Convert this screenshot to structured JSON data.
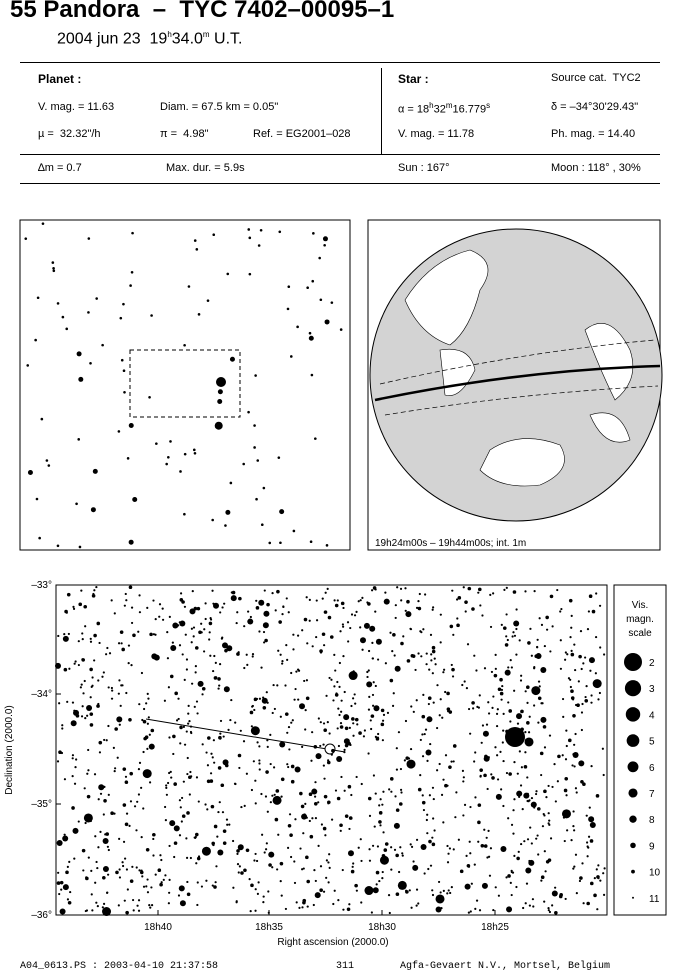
{
  "header": {
    "title": "55 Pandora  –  TYC 7402–00095–1",
    "date": "2004 jun 23",
    "time": [
      "19",
      "h",
      "34.0",
      "m",
      "U.T."
    ]
  },
  "planet": {
    "label": "Planet :",
    "vmag": "V. mag. = 11.63",
    "diam": "Diam. = 67.5 km = 0.05\"",
    "mu": "µ =  32.32\"/h",
    "pi": "π =  4.98\"",
    "ref": "Ref. = EG2001–028"
  },
  "star": {
    "label": "Star :",
    "source": "Source cat.  TYC2",
    "alpha": [
      "α = 18",
      "h",
      "32",
      "m",
      "16.779",
      "s"
    ],
    "delta": "δ = –34°30'29.43\"",
    "vmag": "V. mag. = 11.78",
    "phmag": "Ph. mag. = 14.40"
  },
  "summary": {
    "dm": "∆m = 0.7",
    "maxdur": "Max. dur. = 5.9s",
    "sun": "Sun : 167°",
    "moon": "Moon : 118° , 30%"
  },
  "globe": {
    "caption": "19h24m00s – 19h44m00s; int.  1m"
  },
  "starchart": {
    "xlabel": "Right ascension (2000.0)",
    "ylabel": "Declination (2000.0)",
    "yticks": [
      "–33°",
      "–34°",
      "–35°",
      "–36°"
    ],
    "xticks": [
      "18h40",
      "18h35",
      "18h30",
      "18h25"
    ]
  },
  "legend": {
    "title": [
      "Vis.",
      "magn.",
      "scale"
    ],
    "magnitudes": [
      2,
      3,
      4,
      5,
      6,
      7,
      8,
      9,
      10,
      11
    ]
  },
  "footer": {
    "file": "A04_0613.PS : 2003-04-10 21:37:58",
    "page": "311",
    "credit": "Agfa-Gevaert N.V., Mortsel, Belgium"
  }
}
